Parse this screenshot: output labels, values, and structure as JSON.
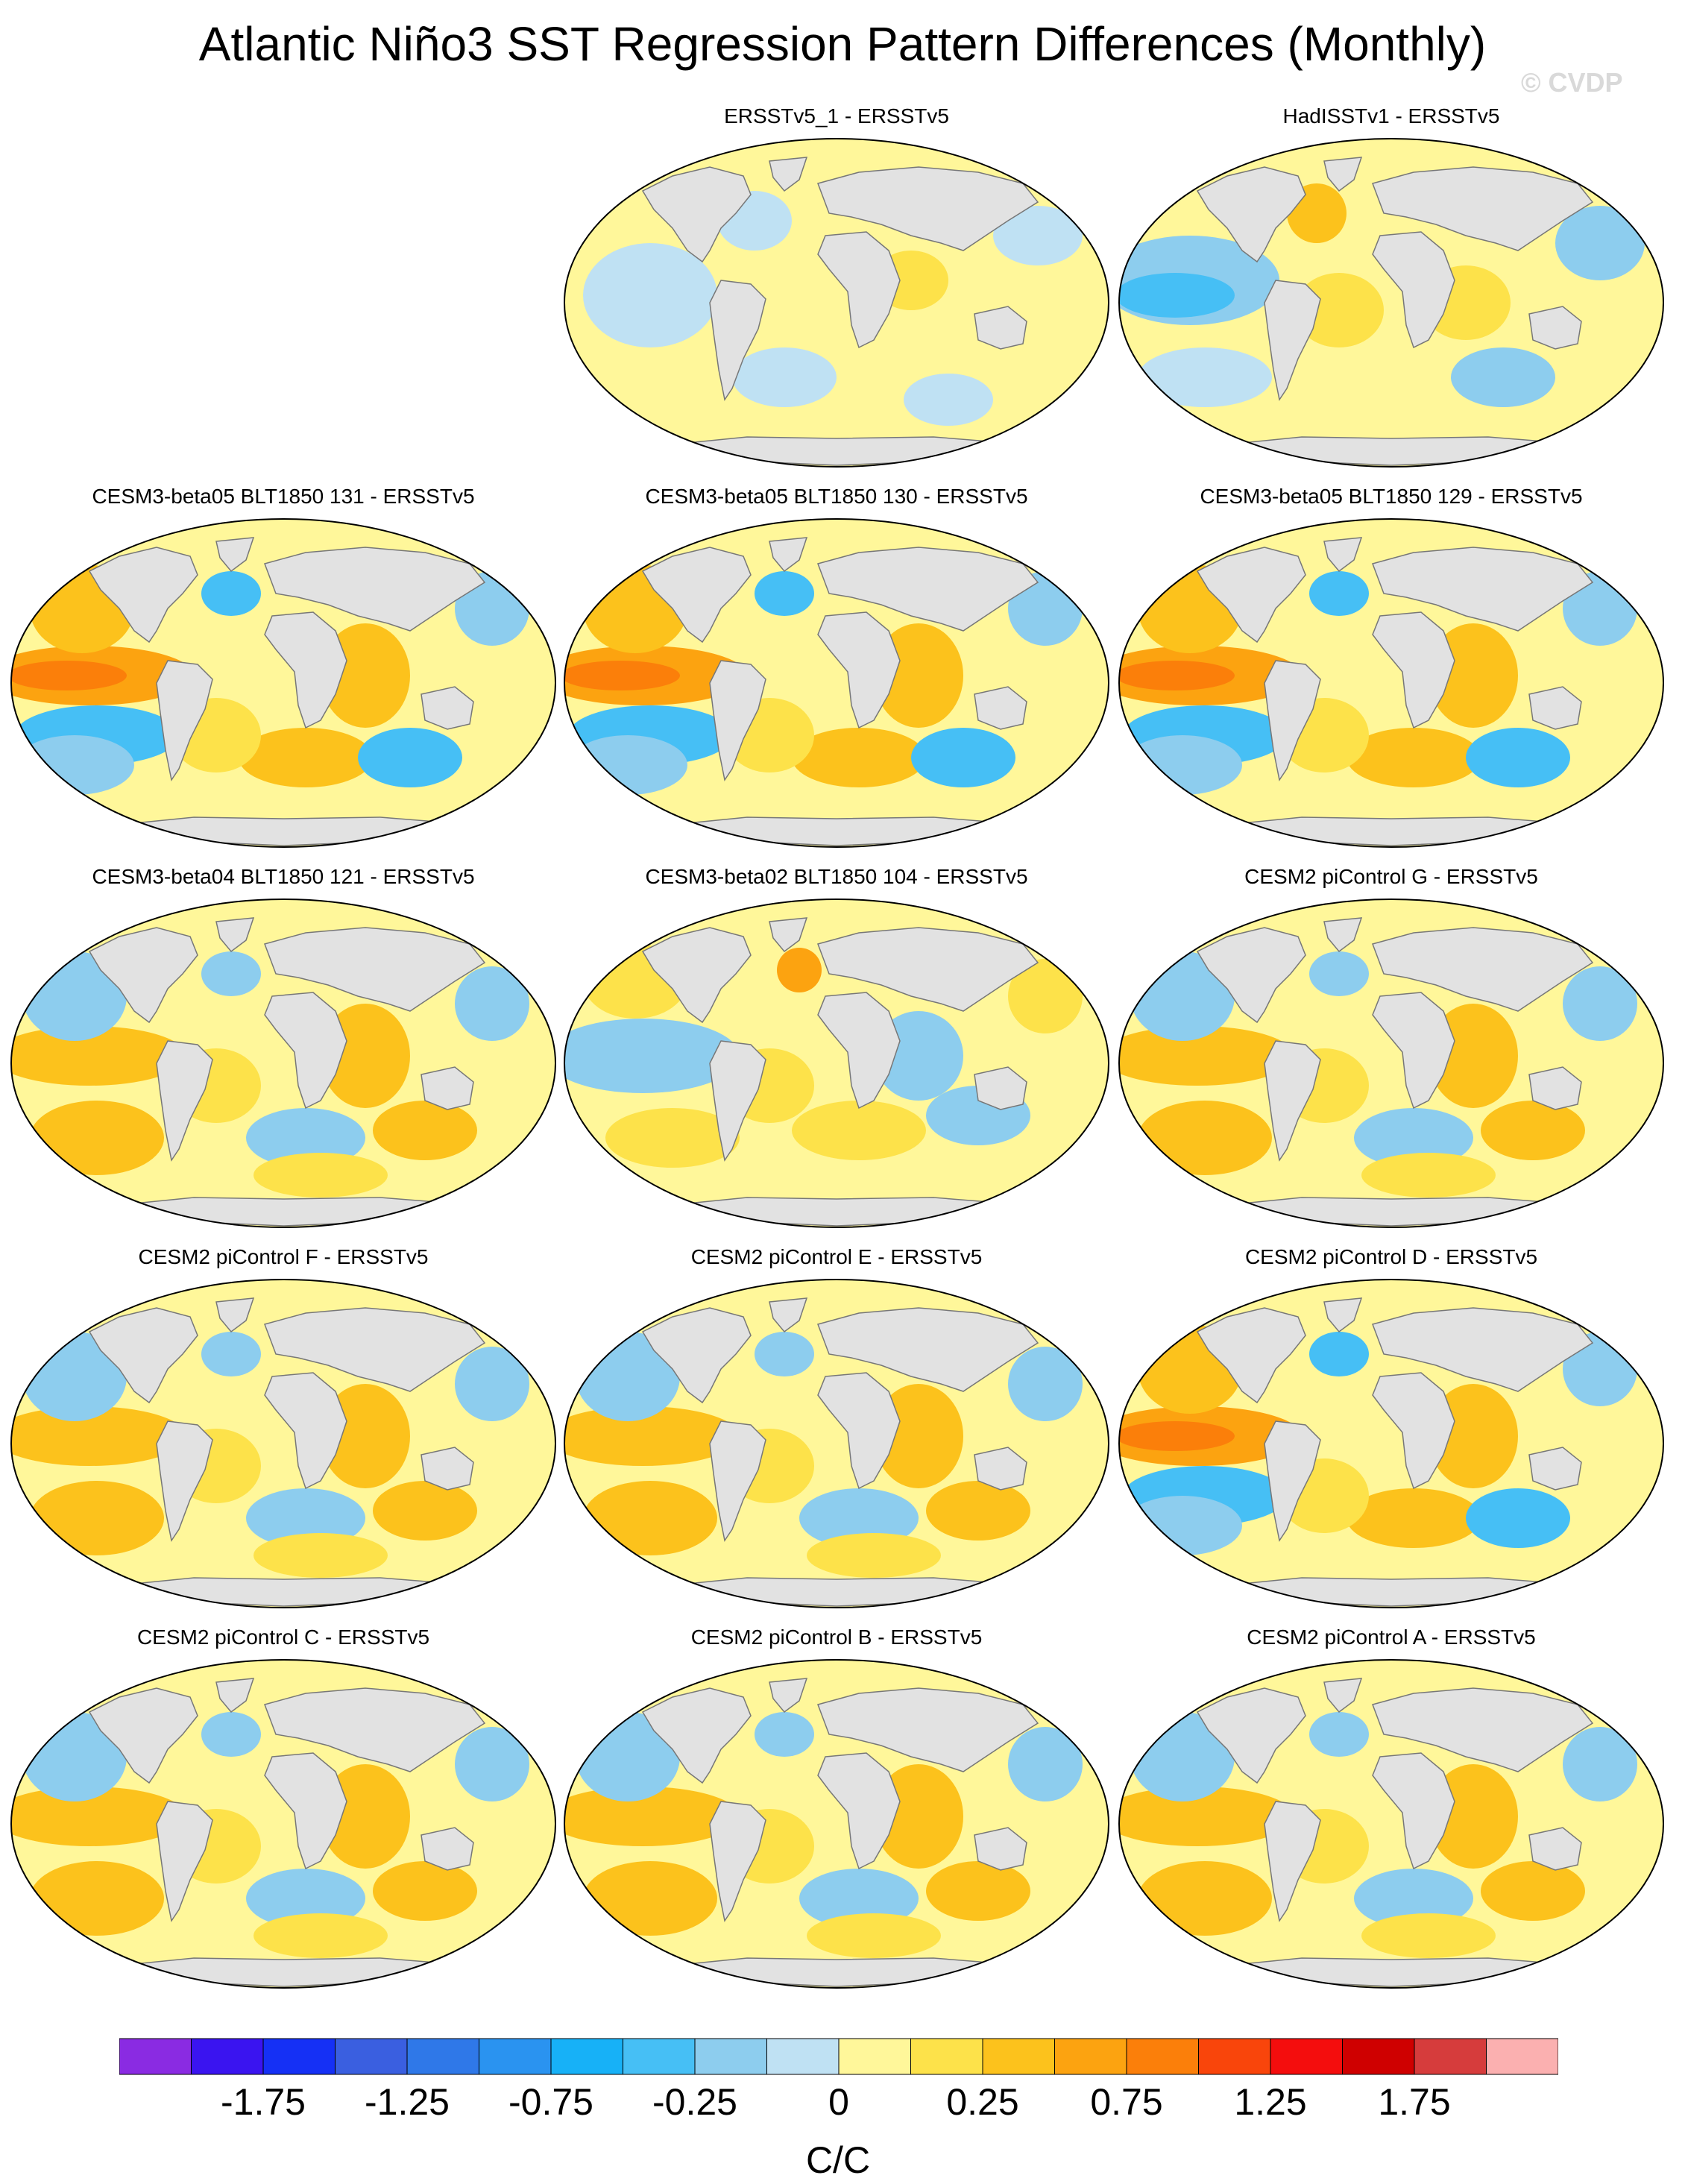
{
  "title": "Atlantic Niño3 SST Regression Pattern Differences (Monthly)",
  "watermark": "© CVDP",
  "panels": [
    {
      "label": "ERSSTv5_1 - ERSSTv5",
      "pattern": "near-zero"
    },
    {
      "label": "HadISSTv1 - ERSSTv5",
      "pattern": "blue-pacific"
    },
    {
      "label": "CESM3-beta05 BLT1850 131 - ERSSTv5",
      "pattern": "strong-pacific"
    },
    {
      "label": "CESM3-beta05 BLT1850 130 - ERSSTv5",
      "pattern": "strong-pacific"
    },
    {
      "label": "CESM3-beta05 BLT1850 129 - ERSSTv5",
      "pattern": "strong-pacific"
    },
    {
      "label": "CESM3-beta04 BLT1850 121 - ERSSTv5",
      "pattern": "moderate"
    },
    {
      "label": "CESM3-beta02 BLT1850 104 - ERSSTv5",
      "pattern": "weak"
    },
    {
      "label": "CESM2 piControl G - ERSSTv5",
      "pattern": "moderate"
    },
    {
      "label": "CESM2 piControl F - ERSSTv5",
      "pattern": "moderate"
    },
    {
      "label": "CESM2 piControl E - ERSSTv5",
      "pattern": "moderate"
    },
    {
      "label": "CESM2 piControl D - ERSSTv5",
      "pattern": "strong-pacific"
    },
    {
      "label": "CESM2 piControl C - ERSSTv5",
      "pattern": "moderate"
    },
    {
      "label": "CESM2 piControl B - ERSSTv5",
      "pattern": "moderate"
    },
    {
      "label": "CESM2 piControl A - ERSSTv5",
      "pattern": "moderate"
    }
  ],
  "colorbar": {
    "units": "C/C",
    "colors": [
      "#8a2be2",
      "#3a14f0",
      "#1530f5",
      "#3a5fe0",
      "#2f78e8",
      "#2a93f0",
      "#17b1f7",
      "#46bff5",
      "#8dcdee",
      "#bfe1f3",
      "#fff79a",
      "#fde24a",
      "#fcc21c",
      "#fca310",
      "#fb7f0a",
      "#f9450b",
      "#f40d0d",
      "#cf0000",
      "#d63c3c",
      "#fbb0b0"
    ],
    "labels": [
      "-1.75",
      "-1.25",
      "-0.75",
      "-0.25",
      "0",
      "0.25",
      "0.75",
      "1.25",
      "1.75"
    ]
  },
  "map_colors": {
    "land": "#e2e2e2",
    "coast": "#777777",
    "ocean_base": "#fff79a"
  }
}
